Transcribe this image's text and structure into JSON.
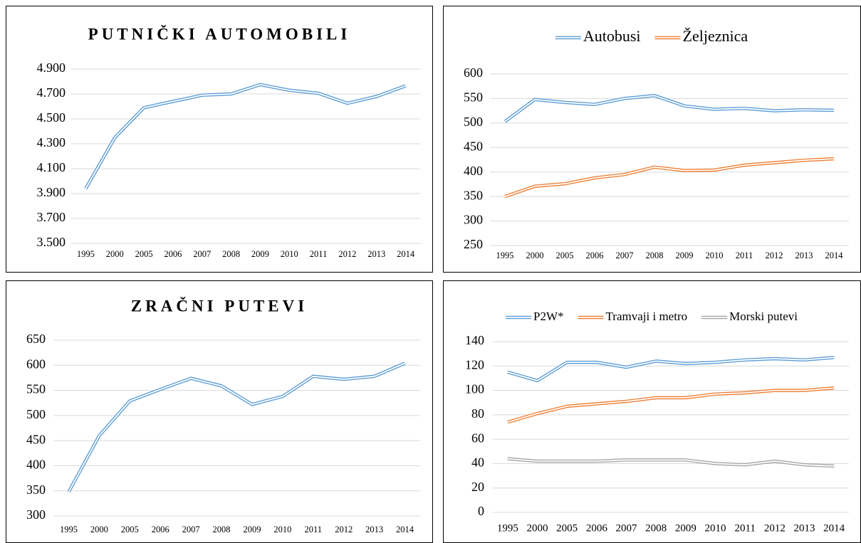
{
  "chart_data": [
    {
      "type": "line",
      "title": "PUTNIČKI AUTOMOBILI",
      "categories": [
        "1995",
        "2000",
        "2005",
        "2006",
        "2007",
        "2008",
        "2009",
        "2010",
        "2011",
        "2012",
        "2013",
        "2014"
      ],
      "values": [
        3940,
        4350,
        4590,
        4640,
        4690,
        4700,
        4775,
        4730,
        4705,
        4625,
        4680,
        4765
      ],
      "color": "#5b9bd5",
      "ylim": [
        3500,
        4900
      ],
      "yticks": [
        {
          "value": 3500,
          "label": "3.500"
        },
        {
          "value": 3700,
          "label": "3.700"
        },
        {
          "value": 3900,
          "label": "3.900"
        },
        {
          "value": 4100,
          "label": "4.100"
        },
        {
          "value": 4300,
          "label": "4.300"
        },
        {
          "value": 4500,
          "label": "4.500"
        },
        {
          "value": 4700,
          "label": "4.700"
        },
        {
          "value": 4900,
          "label": "4.900"
        }
      ],
      "grid": true
    },
    {
      "type": "line",
      "categories": [
        "1995",
        "2000",
        "2005",
        "2006",
        "2007",
        "2008",
        "2009",
        "2010",
        "2011",
        "2012",
        "2013",
        "2014"
      ],
      "series": [
        {
          "name": "Autobusi",
          "color": "#5b9bd5",
          "values": [
            503,
            548,
            542,
            538,
            550,
            556,
            535,
            528,
            530,
            525,
            527,
            526
          ]
        },
        {
          "name": "Željeznica",
          "color": "#ed7d31",
          "values": [
            350,
            371,
            376,
            388,
            395,
            410,
            403,
            404,
            414,
            419,
            424,
            427
          ]
        }
      ],
      "ylim": [
        250,
        600
      ],
      "yticks": [
        250,
        300,
        350,
        400,
        450,
        500,
        550,
        600
      ],
      "grid": true
    },
    {
      "type": "line",
      "title": "ZRAČNI PUTEVI",
      "categories": [
        "1995",
        "2000",
        "2005",
        "2006",
        "2007",
        "2008",
        "2009",
        "2010",
        "2011",
        "2012",
        "2013",
        "2014"
      ],
      "values": [
        348,
        460,
        529,
        552,
        574,
        559,
        522,
        538,
        578,
        572,
        578,
        604
      ],
      "color": "#5b9bd5",
      "ylim": [
        300,
        650
      ],
      "yticks": [
        300,
        350,
        400,
        450,
        500,
        550,
        600,
        650
      ],
      "grid": true
    },
    {
      "type": "line",
      "categories": [
        "1995",
        "2000",
        "2005",
        "2006",
        "2007",
        "2008",
        "2009",
        "2010",
        "2011",
        "2012",
        "2013",
        "2014"
      ],
      "series": [
        {
          "name": "P2W*",
          "color": "#5b9bd5",
          "values": [
            115,
            108,
            123,
            123,
            119,
            124,
            122,
            123,
            125,
            126,
            125,
            127
          ]
        },
        {
          "name": "Tramvaji i metro",
          "color": "#ed7d31",
          "values": [
            74,
            81,
            87,
            89,
            91,
            94,
            94,
            97,
            98,
            100,
            100,
            102
          ]
        },
        {
          "name": "Morski putevi",
          "color": "#a5a5a5",
          "values": [
            44,
            42,
            42,
            42,
            43,
            43,
            43,
            40,
            39,
            42,
            39,
            38
          ]
        }
      ],
      "ylim": [
        0,
        140
      ],
      "yticks": [
        0,
        20,
        40,
        60,
        80,
        100,
        120,
        140
      ],
      "grid": true
    }
  ]
}
